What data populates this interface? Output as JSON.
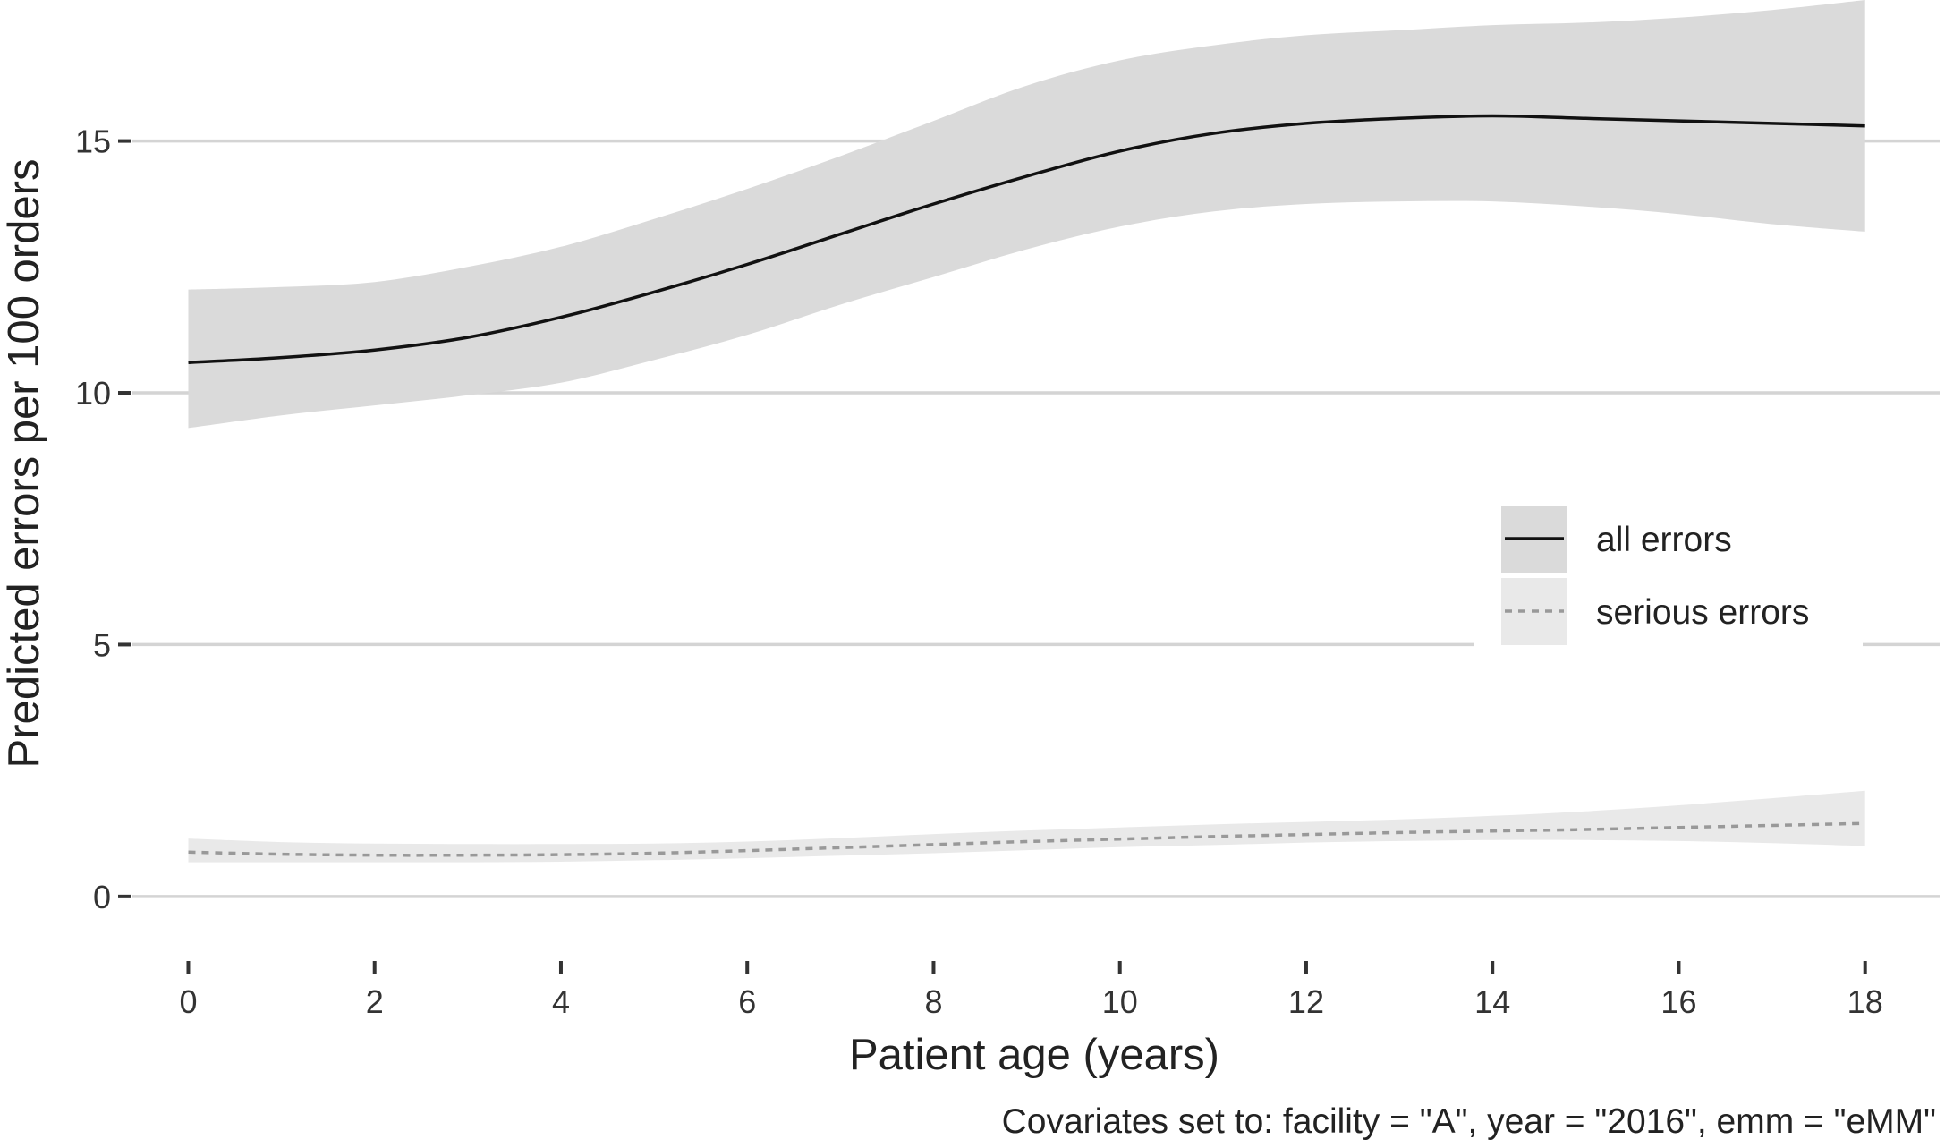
{
  "chart_data": {
    "type": "line",
    "xlabel": "Patient age (years)",
    "ylabel": "Predicted errors per 100 orders",
    "caption": "Covariates set to: facility = \"A\", year = \"2016\", emm = \"eMM\"",
    "xlim": [
      -0.6,
      18.8
    ],
    "ylim": [
      -0.5,
      17.8
    ],
    "x_ticks": [
      0,
      2,
      4,
      6,
      8,
      10,
      12,
      14,
      16,
      18
    ],
    "y_ticks": [
      0,
      5,
      10,
      15
    ],
    "grid": "horizontal major gridlines",
    "legend_position": "right",
    "series": [
      {
        "name": "all errors",
        "line_style": "solid",
        "line_color": "#111111",
        "band_color": "#dadada",
        "x": [
          0,
          1,
          2,
          3,
          4,
          5,
          6,
          7,
          8,
          9,
          10,
          11,
          12,
          13,
          14,
          15,
          16,
          17,
          18
        ],
        "y": [
          10.6,
          10.7,
          10.85,
          11.1,
          11.5,
          12.0,
          12.55,
          13.15,
          13.75,
          14.3,
          14.8,
          15.15,
          15.35,
          15.45,
          15.5,
          15.45,
          15.4,
          15.35,
          15.3
        ],
        "lower": [
          9.3,
          9.55,
          9.75,
          9.95,
          10.2,
          10.65,
          11.15,
          11.75,
          12.3,
          12.85,
          13.3,
          13.6,
          13.75,
          13.8,
          13.8,
          13.7,
          13.55,
          13.35,
          13.2
        ],
        "upper": [
          12.05,
          12.1,
          12.2,
          12.5,
          12.9,
          13.45,
          14.05,
          14.7,
          15.4,
          16.1,
          16.6,
          16.9,
          17.1,
          17.2,
          17.3,
          17.35,
          17.45,
          17.6,
          17.8
        ]
      },
      {
        "name": "serious errors",
        "line_style": "dashed",
        "line_color": "#999999",
        "band_color": "#e9e9e9",
        "x": [
          0,
          1,
          2,
          3,
          4,
          5,
          6,
          7,
          8,
          9,
          10,
          11,
          12,
          13,
          14,
          15,
          16,
          17,
          18
        ],
        "y": [
          0.88,
          0.84,
          0.82,
          0.82,
          0.83,
          0.86,
          0.91,
          0.97,
          1.03,
          1.09,
          1.14,
          1.19,
          1.23,
          1.27,
          1.3,
          1.33,
          1.37,
          1.41,
          1.45
        ],
        "lower": [
          0.68,
          0.68,
          0.68,
          0.68,
          0.69,
          0.72,
          0.76,
          0.81,
          0.86,
          0.92,
          0.98,
          1.02,
          1.07,
          1.1,
          1.12,
          1.12,
          1.1,
          1.06,
          1.0
        ],
        "upper": [
          1.15,
          1.08,
          1.05,
          1.04,
          1.04,
          1.05,
          1.09,
          1.16,
          1.24,
          1.31,
          1.37,
          1.43,
          1.48,
          1.53,
          1.6,
          1.69,
          1.81,
          1.95,
          2.1
        ]
      }
    ]
  }
}
